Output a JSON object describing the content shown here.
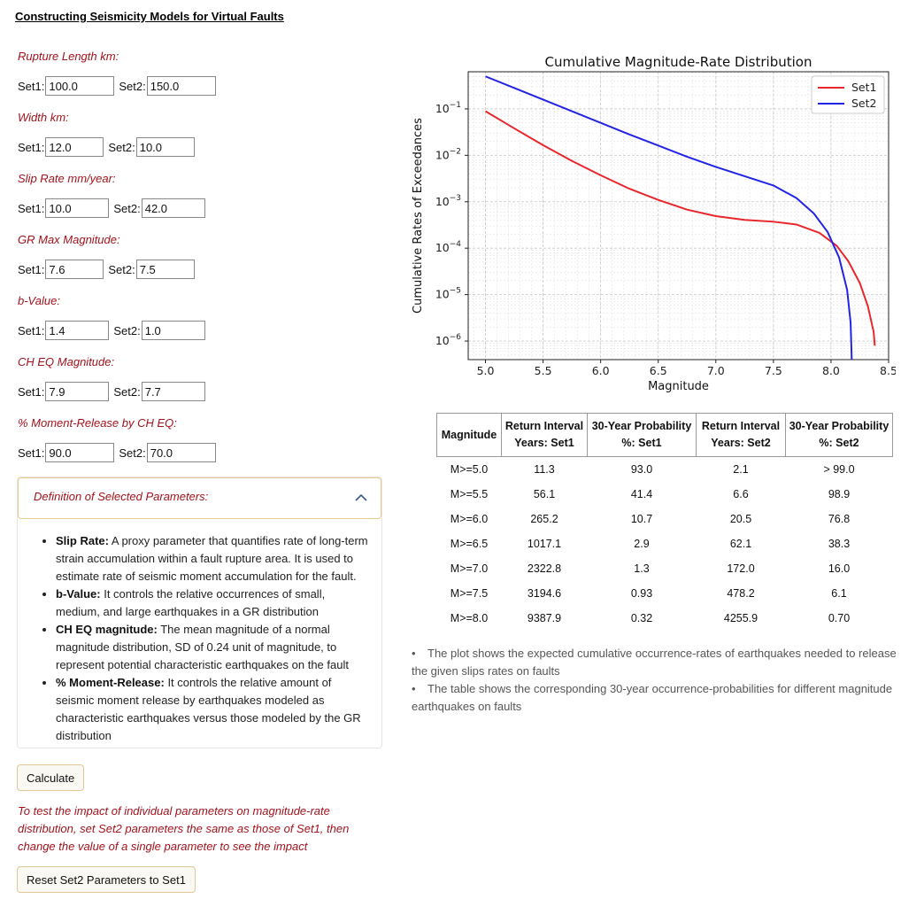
{
  "page_title": "Constructing Seismicity Models for Virtual Faults",
  "set1_label": "Set1:",
  "set2_label": "Set2:",
  "params": [
    {
      "label": "Rupture Length km:",
      "set1": "100.0",
      "set2": "150.0"
    },
    {
      "label": "Width km:",
      "set1": "12.0",
      "set2": "10.0"
    },
    {
      "label": "Slip Rate mm/year:",
      "set1": "10.0",
      "set2": "42.0"
    },
    {
      "label": "GR Max Magnitude:",
      "set1": "7.6",
      "set2": "7.5"
    },
    {
      "label": "b-Value:",
      "set1": "1.4",
      "set2": "1.0"
    },
    {
      "label": "CH EQ Magnitude:",
      "set1": "7.9",
      "set2": "7.7"
    },
    {
      "label": "% Moment-Release by CH EQ:",
      "set1": "90.0",
      "set2": "70.0"
    }
  ],
  "definitions": {
    "title": "Definition of Selected Parameters:",
    "items": [
      {
        "term": "Slip Rate:",
        "text": "A proxy parameter that quantifies rate of long-term strain accumulation within a fault rupture area. It is used to estimate rate of seismic moment accumulation for the fault."
      },
      {
        "term": "b-Value:",
        "text": "It controls the relative occurrences of small, medium, and large earthquakes in a GR distribution"
      },
      {
        "term": "CH EQ magnitude:",
        "text": "The mean magnitude of a normal magnitude distribution, SD of 0.24 unit of magnitude, to represent potential characteristic earthquakes on the fault"
      },
      {
        "term": "% Moment-Release:",
        "text": "It controls the relative amount of seismic moment release by earthquakes modeled as characteristic earthquakes versus those modeled by the GR distribution"
      }
    ]
  },
  "buttons": {
    "calculate": "Calculate",
    "reset": "Reset Set2 Parameters to Set1"
  },
  "note": "To test the impact of individual parameters on magnitude-rate distribution, set Set2 parameters the same as those of Set1, then change the value of a single parameter to see the impact",
  "chart_data": {
    "type": "line",
    "title": "Cumulative Magnitude-Rate Distribution",
    "xlabel": "Magnitude",
    "ylabel": "Cumulative Rates of Exceedances",
    "xlim": [
      4.85,
      8.5
    ],
    "ylim_log10": [
      -6.4,
      -0.2
    ],
    "yscale": "log",
    "grid": true,
    "legend_position": "top-right",
    "x_ticks": [
      "5.0",
      "5.5",
      "6.0",
      "6.5",
      "7.0",
      "7.5",
      "8.0",
      "8.5"
    ],
    "y_ticks": [
      {
        "base": "10",
        "exp": "−1",
        "value": -1
      },
      {
        "base": "10",
        "exp": "−2",
        "value": -2
      },
      {
        "base": "10",
        "exp": "−3",
        "value": -3
      },
      {
        "base": "10",
        "exp": "−4",
        "value": -4
      },
      {
        "base": "10",
        "exp": "−5",
        "value": -5
      },
      {
        "base": "10",
        "exp": "−6",
        "value": -6
      }
    ],
    "series": [
      {
        "name": "Set1",
        "color": "#e8262b",
        "x": [
          5.0,
          5.25,
          5.5,
          5.75,
          6.0,
          6.25,
          6.5,
          6.75,
          7.0,
          7.25,
          7.5,
          7.7,
          7.9,
          8.05,
          8.15,
          8.25,
          8.32,
          8.37,
          8.38
        ],
        "log10_y": [
          -1.05,
          -1.42,
          -1.78,
          -2.12,
          -2.43,
          -2.72,
          -2.96,
          -3.17,
          -3.31,
          -3.39,
          -3.43,
          -3.49,
          -3.67,
          -3.95,
          -4.28,
          -4.75,
          -5.25,
          -5.8,
          -6.1
        ]
      },
      {
        "name": "Set2",
        "color": "#2323e8",
        "x": [
          5.0,
          5.25,
          5.5,
          5.75,
          6.0,
          6.25,
          6.5,
          6.75,
          7.0,
          7.25,
          7.5,
          7.7,
          7.85,
          7.97,
          8.07,
          8.14,
          8.17,
          8.18
        ],
        "log10_y": [
          -0.3,
          -0.55,
          -0.8,
          -1.05,
          -1.3,
          -1.55,
          -1.79,
          -2.03,
          -2.25,
          -2.45,
          -2.65,
          -2.92,
          -3.25,
          -3.65,
          -4.2,
          -4.9,
          -5.6,
          -6.4
        ]
      }
    ]
  },
  "table": {
    "headers": [
      "Magnitude",
      "Return Interval Years: Set1",
      "30-Year Probability %: Set1",
      "Return Interval Years: Set2",
      "30-Year Probability %: Set2"
    ],
    "rows": [
      [
        "M>=5.0",
        "11.3",
        "93.0",
        "2.1",
        "> 99.0"
      ],
      [
        "M>=5.5",
        "56.1",
        "41.4",
        "6.6",
        "98.9"
      ],
      [
        "M>=6.0",
        "265.2",
        "10.7",
        "20.5",
        "76.8"
      ],
      [
        "M>=6.5",
        "1017.1",
        "2.9",
        "62.1",
        "38.3"
      ],
      [
        "M>=7.0",
        "2322.8",
        "1.3",
        "172.0",
        "16.0"
      ],
      [
        "M>=7.5",
        "3194.6",
        "0.93",
        "478.2",
        "6.1"
      ],
      [
        "M>=8.0",
        "9387.9",
        "0.32",
        "4255.9",
        "0.70"
      ]
    ]
  },
  "bullets": [
    "The plot shows the expected cumulative occurrence-rates of earthquakes needed to release the given slips rates on faults",
    "The table shows the corresponding 30-year occurrence-probabilities for different magnitude earthquakes on faults"
  ]
}
